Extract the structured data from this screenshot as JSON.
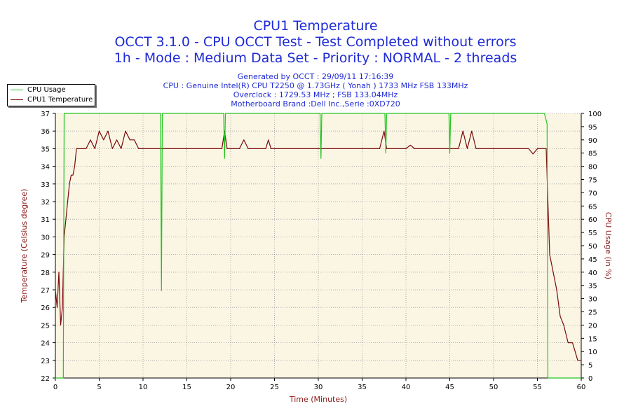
{
  "header": {
    "title": "CPU1 Temperature",
    "subtitle": "OCCT 3.1.0 - CPU OCCT Test - Test Completed without errors",
    "subtitle2": "1h - Mode : Medium Data Set - Priority : NORMAL - 2 threads",
    "info": [
      "Generated by OCCT : 29/09/11 17:16:39",
      "CPU : Genuine Intel(R) CPU T2250 @ 1.73GHz ( Yonah ) 1733 MHz FSB 133MHz",
      "Overclock : 1729.53 MHz ; FSB 133.04MHz",
      "Motherboard Brand :Dell Inc.,Serie :0XD720"
    ]
  },
  "legend": {
    "placement": "top-left",
    "items": [
      {
        "label": "CPU Usage",
        "color": "#21c421"
      },
      {
        "label": "CPU1 Temperature",
        "color": "#7a0a0a"
      }
    ]
  },
  "colors": {
    "plot_background": "#fbf6e4",
    "grid": "#9a9a9a",
    "title": "#1f2bd6",
    "axis_label": "#8b1a1a"
  },
  "chart_data": {
    "type": "line",
    "grid": true,
    "xlabel": "Time (Minutes)",
    "ylabel": "Temperature (Celsius degree)",
    "y2label": "CPU Usage (in %)",
    "xlim": [
      0,
      60
    ],
    "ylim": [
      22,
      37
    ],
    "y2lim": [
      0,
      100
    ],
    "x_ticks": [
      0,
      5,
      10,
      15,
      20,
      25,
      30,
      35,
      40,
      45,
      50,
      55,
      60
    ],
    "y_ticks": [
      22,
      23,
      24,
      25,
      26,
      27,
      28,
      29,
      30,
      31,
      32,
      33,
      34,
      35,
      36,
      37
    ],
    "y2_ticks": [
      0,
      5,
      10,
      15,
      20,
      25,
      30,
      35,
      40,
      45,
      50,
      55,
      60,
      65,
      70,
      75,
      80,
      85,
      90,
      95,
      100
    ],
    "series": [
      {
        "name": "CPU1 Temperature",
        "axis": "left",
        "color": "#7a0a0a",
        "x": [
          0,
          0.2,
          0.4,
          0.6,
          0.8,
          1.0,
          1.2,
          1.4,
          1.6,
          1.8,
          2.0,
          2.2,
          2.4,
          2.6,
          2.8,
          3.0,
          3.5,
          4.0,
          4.5,
          5.0,
          5.5,
          6.0,
          6.5,
          7.0,
          7.5,
          8.0,
          8.5,
          9.0,
          9.5,
          10.0,
          11.0,
          11.5,
          12.0,
          15.0,
          19.0,
          19.3,
          19.6,
          20.0,
          21.0,
          21.5,
          22.0,
          23.0,
          24.0,
          24.3,
          24.6,
          25.0,
          30.0,
          37.0,
          37.5,
          37.8,
          38.5,
          40.0,
          40.5,
          41.0,
          44.0,
          46.0,
          46.5,
          47.0,
          47.5,
          48.0,
          52.0,
          54.0,
          54.5,
          55.0,
          56.0,
          56.2,
          56.4,
          56.8,
          57.2,
          57.6,
          58.0,
          58.5,
          59.0,
          59.3,
          59.6,
          60.0
        ],
        "values": [
          27,
          26,
          28,
          25,
          26,
          30,
          31,
          32,
          33,
          33.5,
          33.5,
          34,
          35,
          35,
          35,
          35,
          35,
          35.5,
          35,
          36,
          35.5,
          36,
          35,
          35.5,
          35,
          36,
          35.5,
          35.5,
          35,
          35,
          35,
          35,
          35,
          35,
          35,
          36,
          35,
          35,
          35,
          35.5,
          35,
          35,
          35,
          35.5,
          35,
          35,
          35,
          35,
          36,
          35,
          35,
          35,
          35.2,
          35,
          35,
          35,
          36,
          35,
          36,
          35,
          35,
          35,
          34.7,
          35,
          35,
          32,
          29,
          28,
          27,
          25.5,
          25,
          24,
          24,
          23.5,
          23,
          23
        ]
      },
      {
        "name": "CPU Usage",
        "axis": "right",
        "color": "#21c421",
        "x": [
          0,
          0.9,
          1.0,
          1.2,
          12.0,
          12.1,
          12.2,
          12.3,
          19.2,
          19.3,
          19.4,
          19.5,
          30.2,
          30.3,
          30.4,
          30.5,
          37.6,
          37.7,
          37.8,
          37.9,
          44.9,
          45.0,
          45.1,
          45.2,
          55.8,
          56.1,
          56.2,
          60.0
        ],
        "values": [
          0,
          0,
          100,
          100,
          100,
          33,
          100,
          100,
          100,
          83,
          100,
          100,
          100,
          83,
          100,
          100,
          100,
          85,
          100,
          100,
          100,
          85,
          100,
          100,
          100,
          96,
          0,
          0
        ]
      }
    ]
  }
}
